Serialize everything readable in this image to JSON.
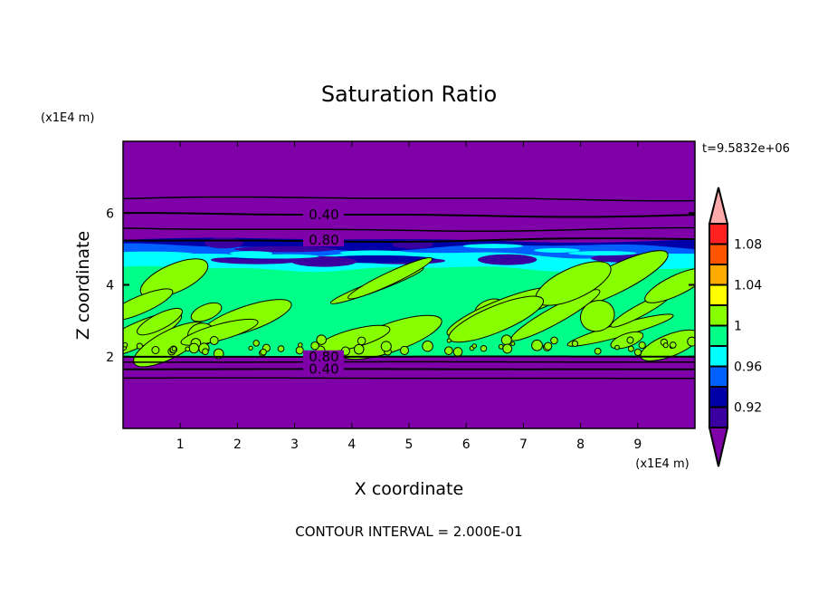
{
  "chart_data": {
    "type": "heatmap",
    "title": "Saturation Ratio",
    "xlabel": "X coordinate",
    "ylabel": "Z coordinate",
    "x_unit": "(x1E4 m)",
    "y_unit": "(x1E4 m)",
    "xlim": [
      0,
      10
    ],
    "ylim": [
      0,
      8
    ],
    "x_ticks": [
      "1",
      "2",
      "3",
      "4",
      "5",
      "6",
      "7",
      "8",
      "9"
    ],
    "y_ticks": [
      "2",
      "4",
      "6"
    ],
    "time_label": "t=9.5832e+06",
    "footer": "CONTOUR INTERVAL = 2.000E-01",
    "colorbar": {
      "levels": [
        0.9,
        0.92,
        0.94,
        0.96,
        0.98,
        1.0,
        1.02,
        1.04,
        1.06,
        1.08,
        1.1
      ],
      "tick_labels": [
        "0.92",
        "0.96",
        "1",
        "1.04",
        "1.08"
      ],
      "colors": [
        "#3a00a0",
        "#0000a8",
        "#0060ff",
        "#00ffff",
        "#00ff88",
        "#88ff00",
        "#ffff00",
        "#ffaa00",
        "#ff5500",
        "#ff2020"
      ],
      "under_color": "#7f00a8",
      "over_color": "#ffaaaa"
    },
    "contour_lines": [
      {
        "z": 6.4,
        "label": ""
      },
      {
        "z": 5.95,
        "label": "0.40"
      },
      {
        "z": 5.55,
        "label": ""
      },
      {
        "z": 5.25,
        "label": "0.80"
      },
      {
        "z": 2.0,
        "label": "0.80"
      },
      {
        "z": 1.85,
        "label": ""
      },
      {
        "z": 1.65,
        "label": "0.40"
      },
      {
        "z": 1.4,
        "label": ""
      }
    ],
    "regions": [
      {
        "z_range": [
          5.0,
          5.3
        ],
        "value_range": "0.90-0.94"
      },
      {
        "z_range": [
          4.4,
          5.0
        ],
        "value_range": "0.94-0.98"
      },
      {
        "z_range": [
          2.0,
          4.4
        ],
        "value_range": "0.98-1.02"
      }
    ]
  }
}
